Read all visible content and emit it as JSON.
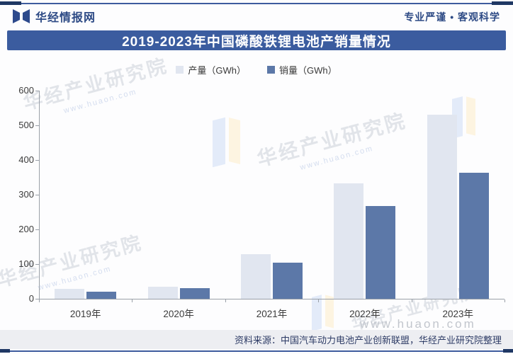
{
  "header": {
    "brand": "华经情报网",
    "slogan": "专业严谨 • 客观科学"
  },
  "title": "2019-2023年中国磷酸铁锂电池产销量情况",
  "chart_data": {
    "type": "bar",
    "categories": [
      "2019年",
      "2020年",
      "2021年",
      "2022年",
      "2023年"
    ],
    "series": [
      {
        "name": "产量（GWh）",
        "color": "#e1e6f0",
        "values": [
          28,
          35,
          128,
          332,
          530
        ]
      },
      {
        "name": "销量（GWh）",
        "color": "#5c78a8",
        "values": [
          21,
          30,
          105,
          268,
          363
        ]
      }
    ],
    "title": "2019-2023年中国磷酸铁锂电池产销量情况",
    "xlabel": "",
    "ylabel": "",
    "ylim": [
      0,
      600
    ],
    "ytick_step": 100,
    "grid": false,
    "legend_position": "top-center"
  },
  "legend": {
    "items": [
      {
        "label": "产量（GWh）"
      },
      {
        "label": "销量（GWh）"
      }
    ]
  },
  "watermark": {
    "text": "华经产业研究院",
    "url": "www.huaon.com"
  },
  "source": "资料来源：中国汽车动力电池产业创新联盟，华经产业研究院整理",
  "colors": {
    "accent": "#3b5c9f",
    "brand_text": "#2d4a85",
    "bar_light": "#e1e6f0",
    "bar_dark": "#5c78a8",
    "frame_cap": "#1f3864"
  }
}
